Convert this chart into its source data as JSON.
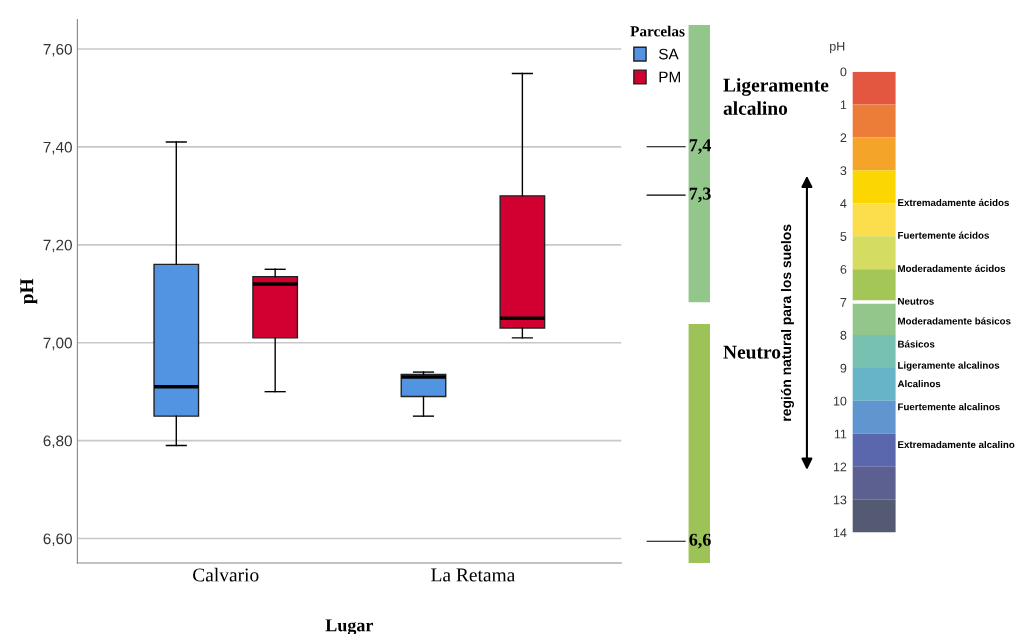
{
  "chart_data": [
    {
      "type": "box",
      "xlabel": "Lugar",
      "ylabel": "pH",
      "legend_title": "Parcelas",
      "legend": "top right",
      "grid": "y",
      "categories": [
        "Calvario",
        "La Retama"
      ],
      "ylim": [
        6.55,
        7.66
      ],
      "yticks": [
        {
          "value": 6.6,
          "label": "6,60"
        },
        {
          "value": 6.8,
          "label": "6,80"
        },
        {
          "value": 7.0,
          "label": "7,00"
        },
        {
          "value": 7.2,
          "label": "7,20"
        },
        {
          "value": 7.4,
          "label": "7,40"
        },
        {
          "value": 7.6,
          "label": "7,60"
        }
      ],
      "series": [
        {
          "name": "SA",
          "color": "#5294e2",
          "boxes": [
            {
              "low": 6.79,
              "q1": 6.85,
              "median": 6.91,
              "q3": 7.16,
              "high": 7.41
            },
            {
              "low": 6.85,
              "q1": 6.89,
              "median": 6.93,
              "q3": 6.935,
              "high": 6.94
            }
          ]
        },
        {
          "name": "PM",
          "color": "#d20030",
          "boxes": [
            {
              "low": 6.9,
              "q1": 7.01,
              "median": 7.12,
              "q3": 7.135,
              "high": 7.15
            },
            {
              "low": 7.01,
              "q1": 7.03,
              "median": 7.05,
              "q3": 7.3,
              "high": 7.55
            }
          ]
        }
      ]
    },
    {
      "type": "other",
      "annotations": [
        "Ligeramente\nalcalino",
        "7,4",
        "7,3",
        "Neutro",
        "6,6"
      ]
    },
    {
      "type": "bar",
      "stacked": true,
      "title": "pH",
      "categories": [
        null
      ],
      "ylim": [
        14,
        0
      ],
      "yticks": [
        0,
        1,
        2,
        3,
        4,
        5,
        6,
        7,
        8,
        9,
        10,
        11,
        12,
        13,
        14
      ],
      "series": [
        {
          "color": "#e35640",
          "values": [
            1
          ]
        },
        {
          "color": "#ec7d38",
          "values": [
            1
          ]
        },
        {
          "color": "#f4a428",
          "values": [
            1
          ]
        },
        {
          "color": "#fcd600",
          "values": [
            1
          ]
        },
        {
          "color": "#fcdd4b",
          "values": [
            1
          ]
        },
        {
          "color": "#d5dc62",
          "values": [
            1
          ]
        },
        {
          "color": "#a3c657",
          "values": [
            1
          ]
        },
        {
          "color": "#93c68b",
          "values": [
            1
          ]
        },
        {
          "color": "#77c1b0",
          "values": [
            1
          ]
        },
        {
          "color": "#66b4c6",
          "values": [
            1
          ]
        },
        {
          "color": "#5f96cf",
          "values": [
            1
          ]
        },
        {
          "color": "#5a67ad",
          "values": [
            1
          ]
        },
        {
          "color": "#5c6090",
          "values": [
            1
          ]
        },
        {
          "color": "#545a72",
          "values": [
            1
          ]
        }
      ],
      "ref_lines": [
        {
          "axis": "y",
          "value": 7,
          "color": "#ffffff"
        }
      ],
      "annotations": [
        "región natural para los suelos",
        "Extremadamente ácidos",
        "Fuertemente ácidos",
        "Moderadamente ácidos",
        "Neutros",
        "Moderadamente básicos",
        "Básicos",
        "Ligeramente alcalinos",
        "Alcalinos",
        "Fuertemente alcalinos",
        "Extremadamente alcalino"
      ]
    }
  ]
}
